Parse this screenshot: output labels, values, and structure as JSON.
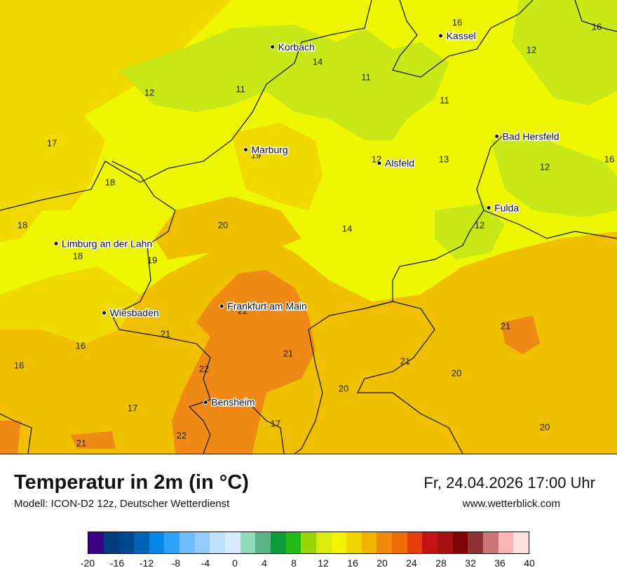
{
  "map": {
    "cities": [
      {
        "name": "Kassel",
        "lon": 9.5,
        "lat": 51.32
      },
      {
        "name": "Korbach",
        "lon": 8.87,
        "lat": 51.27
      },
      {
        "name": "Bad Hersfeld",
        "lon": 9.71,
        "lat": 50.87
      },
      {
        "name": "Marburg",
        "lon": 8.77,
        "lat": 50.81
      },
      {
        "name": "Alsfeld",
        "lon": 9.27,
        "lat": 50.75
      },
      {
        "name": "Fulda",
        "lon": 9.68,
        "lat": 50.55
      },
      {
        "name": "Limburg an der Lahn",
        "lon": 8.06,
        "lat": 50.39
      },
      {
        "name": "Frankfurt am Main",
        "lon": 8.68,
        "lat": 50.11
      },
      {
        "name": "Wiesbaden",
        "lon": 8.24,
        "lat": 50.08
      },
      {
        "name": "Bensheim",
        "lon": 8.62,
        "lat": 49.68
      }
    ],
    "temperature_labels": [
      "16",
      "16",
      "12",
      "14",
      "11",
      "11",
      "11",
      "12",
      "17",
      "19",
      "12",
      "13",
      "12",
      "16",
      "18",
      "20",
      "14",
      "12",
      "18",
      "18",
      "19",
      "22",
      "21",
      "21",
      "16",
      "21",
      "21",
      "16",
      "22",
      "20",
      "20",
      "17",
      "17",
      "21",
      "22",
      "20"
    ],
    "zone_colors": {
      "cool_11_12": "#c8e817",
      "mild_14_16": "#eef700",
      "warm_17_18": "#f1da00",
      "warmer_19_20": "#f0c000",
      "hot_21_22": "#ef8a16"
    }
  },
  "title": "Temperatur in 2m (in °C)",
  "model": "Modell: ICON-D2 12z, Deutscher Wetterdienst",
  "datetime": "Fr, 24.04.2026 17:00 Uhr",
  "website": "www.wetterblick.com",
  "legend": {
    "colors": [
      "#3a0082",
      "#013c7d",
      "#01478f",
      "#0162b9",
      "#0587e8",
      "#2ca3f9",
      "#70bcfd",
      "#93ccfd",
      "#bfe1fe",
      "#d9ebfe",
      "#91dbb8",
      "#5bb287",
      "#0c9a3a",
      "#22bb13",
      "#9ad508",
      "#dbea0a",
      "#f1f500",
      "#f2d500",
      "#f2b200",
      "#f2890a",
      "#ee6c0a",
      "#e53c0a",
      "#c11313",
      "#a51012",
      "#7f0103",
      "#8e3335",
      "#c97676",
      "#fdb5b5",
      "#fde0e0"
    ],
    "ticks": [
      "-20",
      "-16",
      "-12",
      "-8",
      "-4",
      "0",
      "4",
      "8",
      "12",
      "16",
      "20",
      "24",
      "28",
      "32",
      "36",
      "40"
    ]
  }
}
